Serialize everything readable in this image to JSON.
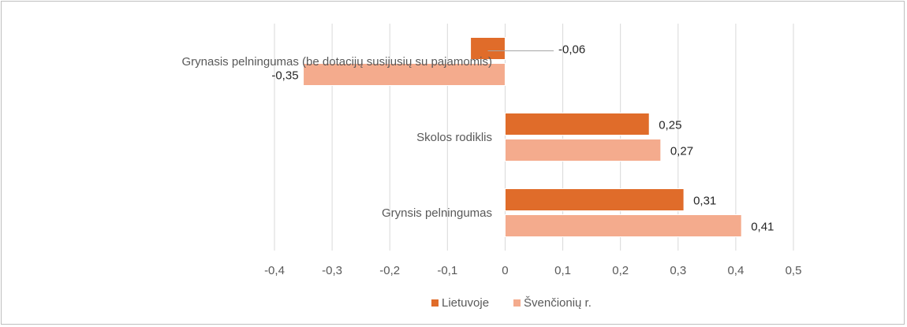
{
  "chart_data": {
    "type": "bar",
    "orientation": "horizontal",
    "categories": [
      "Grynsis pelningumas",
      "Skolos rodiklis",
      "Grynasis pelningumas (be dotacijų susijusių su pajamomis)"
    ],
    "series": [
      {
        "name": "Lietuvoje",
        "values": [
          0.31,
          0.25,
          -0.06
        ],
        "labels": [
          "0,31",
          "0,25",
          "-0,06"
        ]
      },
      {
        "name": "Švenčionių r.",
        "values": [
          0.41,
          0.27,
          -0.35
        ],
        "labels": [
          "0,41",
          "0,27",
          "-0,35"
        ]
      }
    ],
    "xlim": [
      -0.4,
      0.5
    ],
    "xticks": [
      {
        "value": -0.4,
        "label": "-0,4"
      },
      {
        "value": -0.3,
        "label": "-0,3"
      },
      {
        "value": -0.2,
        "label": "-0,2"
      },
      {
        "value": -0.1,
        "label": "-0,1"
      },
      {
        "value": 0,
        "label": "0"
      },
      {
        "value": 0.1,
        "label": "0,1"
      },
      {
        "value": 0.2,
        "label": "0,2"
      },
      {
        "value": 0.3,
        "label": "0,3"
      },
      {
        "value": 0.4,
        "label": "0,4"
      },
      {
        "value": 0.5,
        "label": "0,5"
      }
    ],
    "grid": "vertical",
    "legend_position": "bottom",
    "colors": {
      "Lietuvoje": "#e06c2a",
      "Švenčionių r.": "#f4ab8d",
      "grid": "#d9d9d9",
      "text": "#595959"
    }
  }
}
